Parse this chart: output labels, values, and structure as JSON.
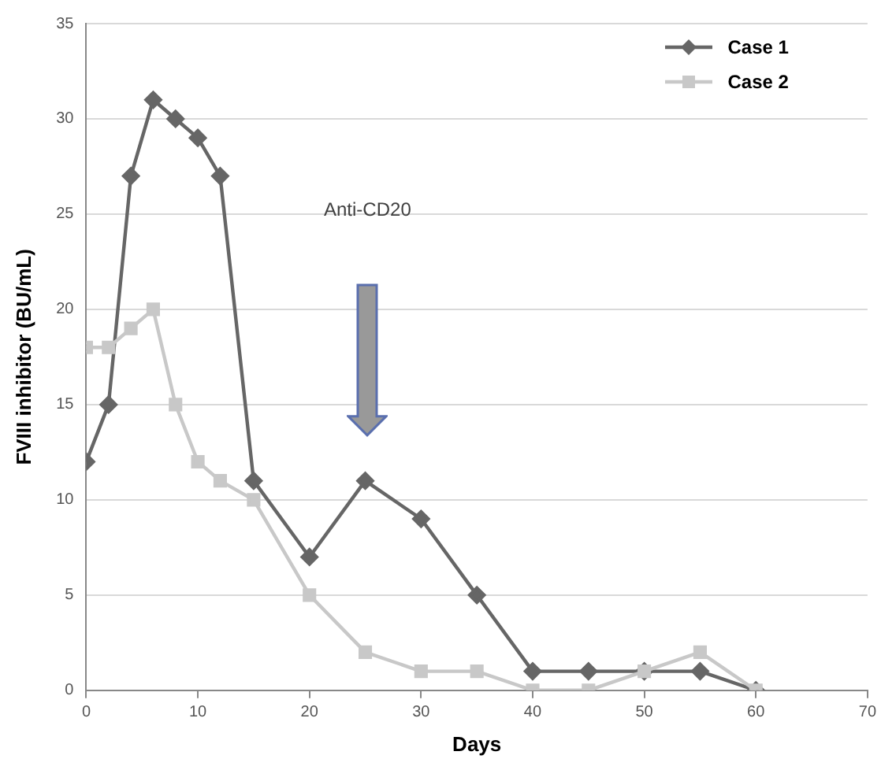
{
  "chart_data": {
    "type": "line",
    "xlabel": "Days",
    "ylabel": "FVIII inhibitor (BU/mL)",
    "xlim": [
      0,
      70
    ],
    "xticks": [
      0,
      10,
      20,
      30,
      40,
      50,
      60,
      70
    ],
    "ylim": [
      0,
      35
    ],
    "yticks": [
      0,
      5,
      10,
      15,
      20,
      25,
      30,
      35
    ],
    "grid": "y",
    "legend": "top right",
    "series": [
      {
        "name": "Case 1",
        "color": "#666666",
        "marker": "diamond",
        "x": [
          0,
          2,
          4,
          6,
          8,
          10,
          12,
          15,
          20,
          25,
          30,
          35,
          40,
          45,
          50,
          55,
          60
        ],
        "values": [
          12,
          15,
          27,
          31,
          30,
          29,
          27,
          11,
          7,
          11,
          9,
          5,
          1,
          1,
          1,
          1,
          0
        ]
      },
      {
        "name": "Case 2",
        "color": "#c8c8c8",
        "marker": "square",
        "x": [
          0,
          2,
          4,
          6,
          8,
          10,
          12,
          15,
          20,
          25,
          30,
          35,
          40,
          45,
          50,
          55,
          60
        ],
        "values": [
          18,
          18,
          19,
          20,
          15,
          12,
          11,
          10,
          5,
          2,
          1,
          1,
          0,
          0,
          1,
          2,
          0
        ]
      }
    ],
    "annotations": [
      "Anti-CD20"
    ]
  }
}
